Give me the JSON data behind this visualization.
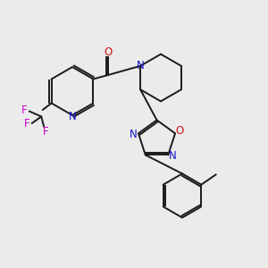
{
  "bg_color": "#ebebeb",
  "bond_color": "#1a1a1a",
  "N_color": "#1414cc",
  "O_color": "#cc1414",
  "F_color": "#cc00cc",
  "font_size": 8.5,
  "lw": 1.4,
  "xlim": [
    0,
    10
  ],
  "ylim": [
    0,
    10
  ]
}
